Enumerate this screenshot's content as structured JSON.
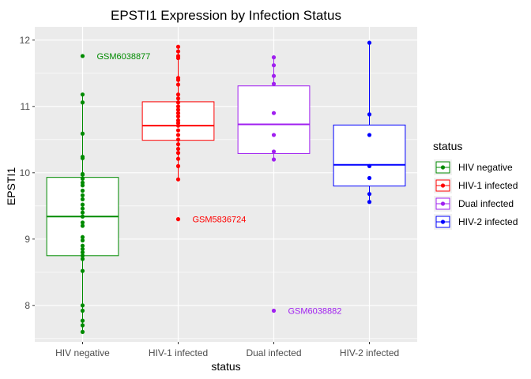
{
  "chart_data": {
    "type": "box",
    "title": "EPSTI1 Expression by Infection Status",
    "xlabel": "status",
    "ylabel": "EPSTI1",
    "ylim": [
      7.45,
      12.2
    ],
    "yticks": [
      8,
      9,
      10,
      11,
      12
    ],
    "grid": true,
    "legend": {
      "title": "status",
      "position": "right",
      "entries": [
        "HIV negative",
        "HIV-1 infected",
        "Dual infected",
        "HIV-2 infected"
      ]
    },
    "categories": [
      "HIV negative",
      "HIV-1 infected",
      "Dual infected",
      "HIV-2 infected"
    ],
    "series": [
      {
        "name": "HIV negative",
        "color": "#008b00",
        "box": {
          "q1": 8.75,
          "median": 9.34,
          "q3": 9.93,
          "whisker_low": 7.6,
          "whisker_high": 11.18
        },
        "points": [
          11.76,
          11.18,
          11.06,
          10.59,
          10.24,
          10.22,
          9.98,
          9.97,
          9.91,
          9.85,
          9.81,
          9.73,
          9.66,
          9.6,
          9.52,
          9.46,
          9.4,
          9.34,
          9.25,
          9.2,
          9.03,
          8.98,
          8.9,
          8.85,
          8.8,
          8.75,
          8.7,
          8.52,
          8.0,
          7.92,
          7.77,
          7.7,
          7.6
        ],
        "outlier_labels": [
          {
            "text": "GSM6038877",
            "y": 11.76
          }
        ]
      },
      {
        "name": "HIV-1 infected",
        "color": "#ff0000",
        "box": {
          "q1": 10.49,
          "median": 10.71,
          "q3": 11.07,
          "whisker_low": 9.9,
          "whisker_high": 11.9
        },
        "points": [
          11.9,
          11.83,
          11.76,
          11.73,
          11.43,
          11.4,
          11.33,
          11.18,
          11.12,
          11.06,
          11.0,
          10.95,
          10.9,
          10.85,
          10.79,
          10.75,
          10.71,
          10.64,
          10.57,
          10.5,
          10.43,
          10.36,
          10.3,
          10.21,
          10.1,
          9.9,
          9.3
        ],
        "outlier_labels": [
          {
            "text": "GSM5836724",
            "y": 9.3
          }
        ]
      },
      {
        "name": "Dual infected",
        "color": "#a020f0",
        "box": {
          "q1": 10.29,
          "median": 10.73,
          "q3": 11.31,
          "whisker_low": 10.2,
          "whisker_high": 11.74
        },
        "points": [
          11.74,
          11.62,
          11.46,
          11.34,
          10.9,
          10.57,
          10.32,
          10.2,
          7.92
        ],
        "outlier_labels": [
          {
            "text": "GSM6038882",
            "y": 7.92
          }
        ]
      },
      {
        "name": "HIV-2 infected",
        "color": "#0000ff",
        "box": {
          "q1": 9.8,
          "median": 10.12,
          "q3": 10.72,
          "whisker_low": 9.56,
          "whisker_high": 11.96
        },
        "points": [
          11.96,
          10.88,
          10.57,
          10.1,
          9.92,
          9.68,
          9.56
        ],
        "outlier_labels": []
      }
    ]
  }
}
